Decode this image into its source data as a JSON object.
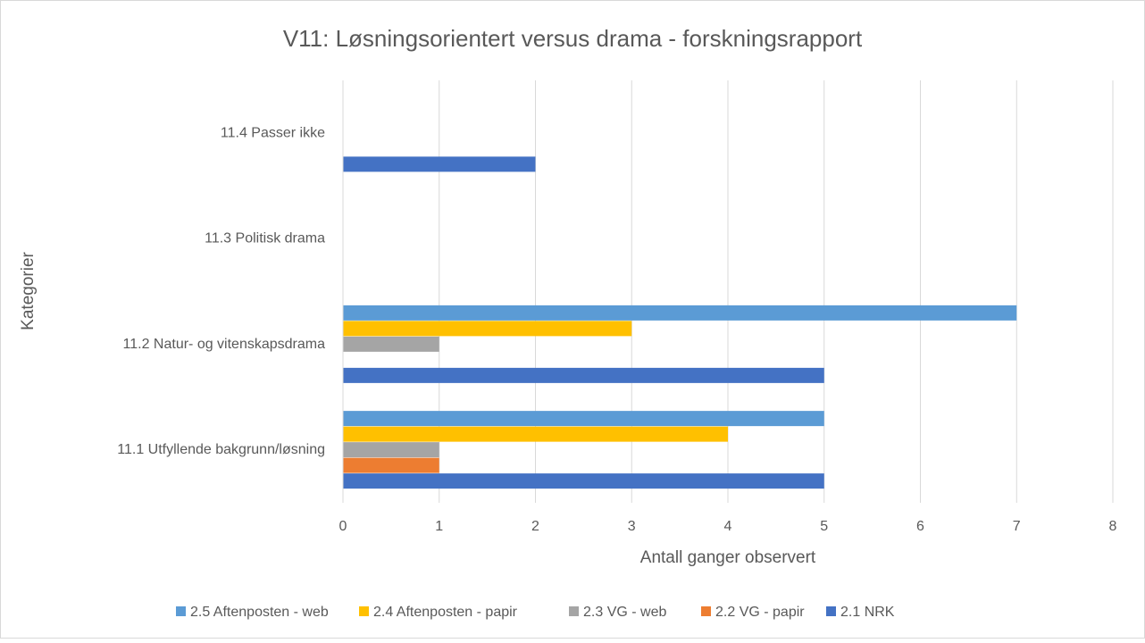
{
  "chart_data": {
    "type": "bar",
    "orientation": "horizontal",
    "title": "V11: Løsningsorientert versus drama - forskningsrapport",
    "x_label": "Antall ganger observert",
    "y_label": "Kategorier",
    "categories": [
      "11.1 Utfyllende bakgrunn/løsning",
      "11.2 Natur- og vitenskapsdrama",
      "11.3 Politisk drama",
      "11.4 Passer ikke"
    ],
    "series": [
      {
        "name": "2.5 Aftenposten - web",
        "color": "#5b9bd5",
        "values": [
          5,
          7,
          0,
          0
        ]
      },
      {
        "name": "2.4 Aftenposten - papir",
        "color": "#ffc000",
        "values": [
          4,
          3,
          0,
          0
        ]
      },
      {
        "name": "2.3 VG - web",
        "color": "#a5a5a5",
        "values": [
          1,
          1,
          0,
          0
        ]
      },
      {
        "name": "2.2 VG - papir",
        "color": "#ed7d31",
        "values": [
          1,
          0,
          0,
          0
        ]
      },
      {
        "name": "2.1 NRK",
        "color": "#4472c4",
        "values": [
          5,
          5,
          0,
          2
        ]
      }
    ],
    "xlim": [
      0,
      8
    ],
    "xticks": [
      0,
      1,
      2,
      3,
      4,
      5,
      6,
      7,
      8
    ],
    "grid": true,
    "legend": "bottom"
  }
}
